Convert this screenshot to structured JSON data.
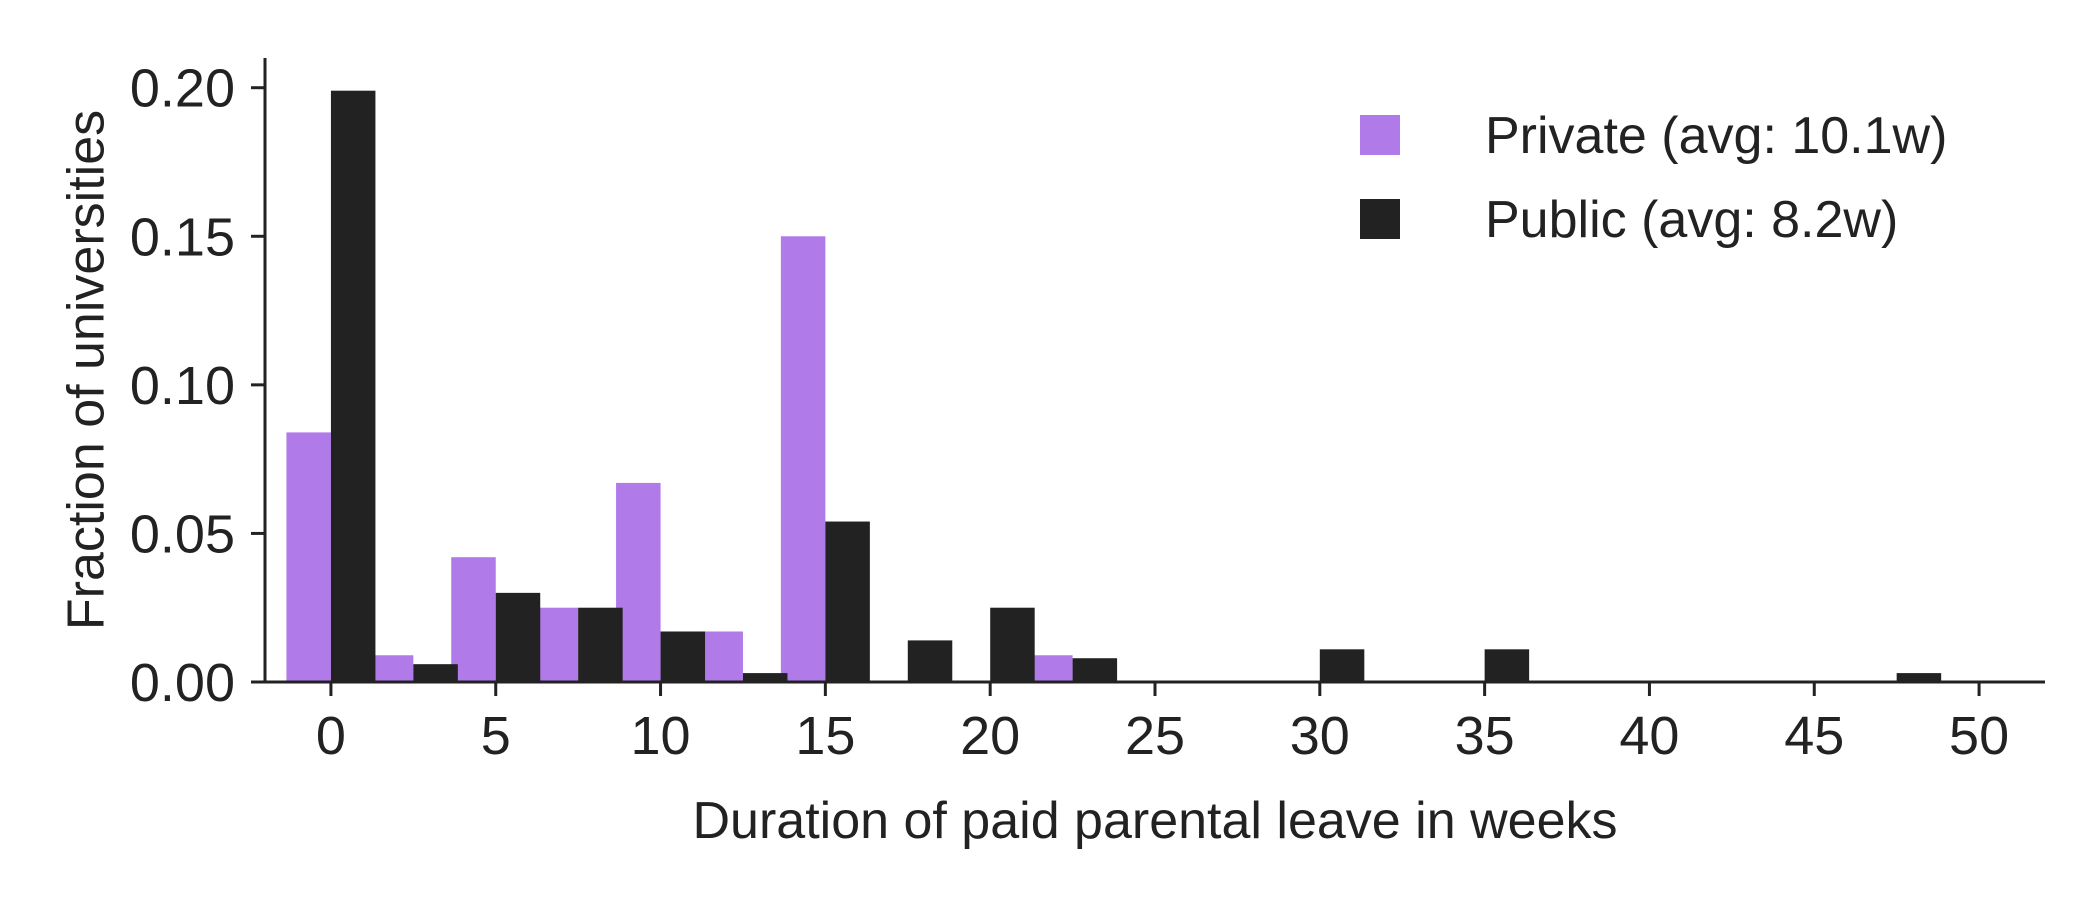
{
  "chart_data": {
    "type": "bar",
    "title": "",
    "xlabel": "Duration of paid parental leave in weeks",
    "ylabel": "Fraction of universities",
    "xlim": [
      -2,
      52
    ],
    "ylim": [
      0,
      0.21
    ],
    "xticks": [
      0,
      5,
      10,
      15,
      20,
      25,
      30,
      35,
      40,
      45,
      50
    ],
    "xtick_labels": [
      "0",
      "5",
      "10",
      "15",
      "20",
      "25",
      "30",
      "35",
      "40",
      "45",
      "50"
    ],
    "yticks": [
      0.0,
      0.05,
      0.1,
      0.15,
      0.2
    ],
    "ytick_labels": [
      "0.00",
      "0.05",
      "0.10",
      "0.15",
      "0.20"
    ],
    "grid": false,
    "legend_position": "top-right",
    "bin_centers": [
      0,
      2.5,
      5,
      7.5,
      10,
      12.5,
      15,
      17.5,
      20,
      22.5,
      25,
      27.5,
      30,
      32.5,
      35,
      37.5,
      40,
      42.5,
      45,
      47.5
    ],
    "series": [
      {
        "name": "Private (avg: 10.1w)",
        "color": "#b07ae8",
        "values": [
          0.084,
          0.009,
          0.042,
          0.025,
          0.067,
          0.017,
          0.15,
          0,
          0,
          0.009,
          0,
          0,
          0,
          0,
          0,
          0,
          0,
          0,
          0,
          0
        ]
      },
      {
        "name": "Public (avg: 8.2w)",
        "color": "#222222",
        "values": [
          0.199,
          0.006,
          0.03,
          0.025,
          0.017,
          0.003,
          0.054,
          0.014,
          0.025,
          0.008,
          0,
          0,
          0.011,
          0,
          0.011,
          0,
          0,
          0,
          0,
          0.003
        ]
      }
    ]
  }
}
